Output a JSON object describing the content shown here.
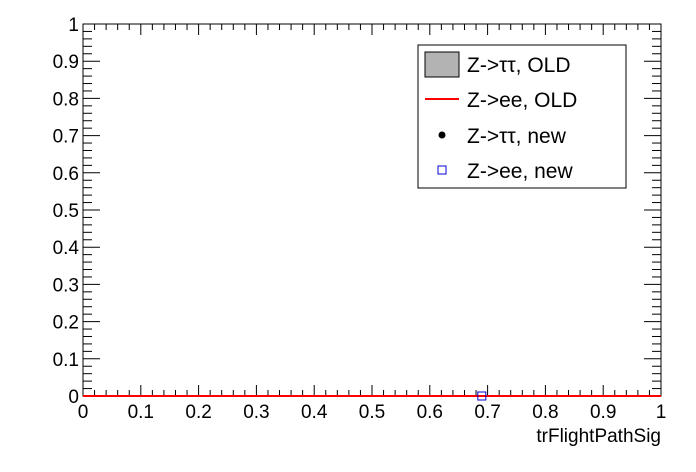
{
  "chart_data": {
    "type": "line",
    "xlabel": "trFlightPathSig",
    "ylabel": "",
    "xlim": [
      0,
      1
    ],
    "ylim": [
      0,
      1
    ],
    "x_ticks": [
      "0",
      "0.1",
      "0.2",
      "0.3",
      "0.4",
      "0.5",
      "0.6",
      "0.7",
      "0.8",
      "0.9",
      "1"
    ],
    "y_ticks": [
      "0",
      "0.1",
      "0.2",
      "0.3",
      "0.4",
      "0.5",
      "0.6",
      "0.7",
      "0.8",
      "0.9",
      "1"
    ],
    "grid": false,
    "legend_position": "top-right",
    "series": [
      {
        "name": "Z->ττ, OLD",
        "style": "filled-histogram",
        "color": "#b3b3b3",
        "x": [
          0,
          1
        ],
        "y": [
          0,
          0
        ]
      },
      {
        "name": "Z->ee, OLD",
        "style": "line",
        "color": "#ff0000",
        "x": [
          0,
          1
        ],
        "y": [
          0,
          0
        ]
      },
      {
        "name": "Z->ττ, new",
        "style": "marker-dot",
        "color": "#000000",
        "x": [],
        "y": []
      },
      {
        "name": "Z->ee, new",
        "style": "marker-open-square",
        "color": "#0000cc",
        "x": [
          0.69
        ],
        "y": [
          0
        ]
      }
    ]
  }
}
